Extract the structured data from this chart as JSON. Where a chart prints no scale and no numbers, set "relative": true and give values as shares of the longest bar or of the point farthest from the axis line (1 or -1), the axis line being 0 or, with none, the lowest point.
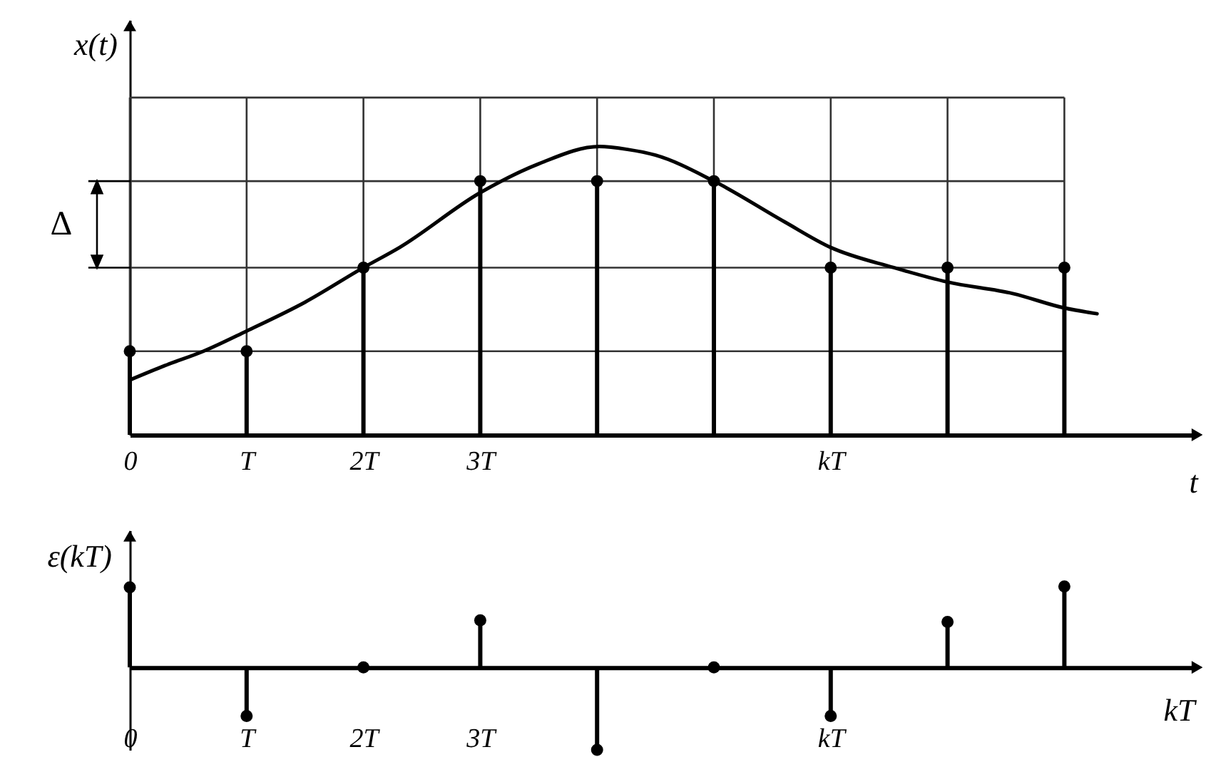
{
  "chart_data": [
    {
      "type": "line",
      "ylabel": "x(t)",
      "xlabel": "t",
      "relative": true,
      "xlim": [
        0,
        9.1
      ],
      "xticks": [
        0,
        {
          "value": 1,
          "label": "T"
        },
        {
          "value": 2,
          "label": "2T"
        },
        {
          "value": 3,
          "label": "3T"
        },
        {
          "value": 4,
          "label": null
        },
        {
          "value": 5,
          "label": null
        },
        {
          "value": 6,
          "label": "kT"
        },
        {
          "value": 7,
          "label": null
        },
        {
          "value": 8,
          "label": null
        }
      ],
      "grid": "x",
      "annotations": [
        "Δ"
      ],
      "ref_lines": [
        {
          "axis": "y",
          "value": 0.29,
          "color": "#333333"
        },
        {
          "axis": "y",
          "value": 0.58,
          "color": "#333333"
        },
        {
          "axis": "y",
          "value": 0.88,
          "color": "#333333"
        },
        {
          "axis": "y",
          "value": 1.17,
          "color": "#333333"
        }
      ],
      "series": [
        {
          "color": "#000000",
          "x": [
            0,
            0.3,
            0.63,
            1,
            1.5,
            2,
            2.31,
            3,
            3.5,
            4.02,
            4.26,
            4.5,
            5,
            5.6,
            6,
            6.54,
            7,
            7.56,
            8,
            8.28
          ],
          "values": [
            0.19,
            0.24,
            0.29,
            0.36,
            0.46,
            0.58,
            0.65,
            0.84,
            0.94,
            1.0,
            0.99,
            0.97,
            0.88,
            0.74,
            0.65,
            0.58,
            0.53,
            0.49,
            0.44,
            0.42
          ]
        },
        {
          "type": "lollipop",
          "color": "#000000",
          "marker": "circle",
          "x": [
            0,
            1,
            2,
            3,
            4,
            5,
            6,
            7,
            8
          ],
          "values": [
            0.29,
            0.29,
            0.58,
            0.88,
            0.88,
            0.88,
            0.58,
            0.58,
            0.58
          ]
        }
      ]
    },
    {
      "type": "lollipop",
      "ylabel": "ε(kT)",
      "xlabel": "kT",
      "relative": true,
      "xlim": [
        0,
        9.1
      ],
      "xticks": [
        0,
        {
          "value": 1,
          "label": "T"
        },
        {
          "value": 2,
          "label": "2T"
        },
        {
          "value": 3,
          "label": "3T"
        },
        {
          "value": 6,
          "label": "kT"
        }
      ],
      "color": "#000000",
      "marker": "circle",
      "x": [
        0,
        1,
        2,
        3,
        4,
        5,
        6,
        7,
        8
      ],
      "values": [
        0.97,
        -0.59,
        0,
        0.57,
        -1,
        0,
        -0.59,
        0.55,
        0.98
      ]
    }
  ]
}
